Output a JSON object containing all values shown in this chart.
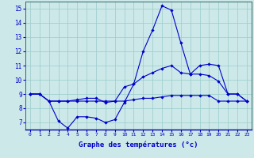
{
  "x_labels": [
    0,
    1,
    2,
    3,
    4,
    5,
    6,
    7,
    8,
    9,
    10,
    11,
    12,
    13,
    14,
    15,
    16,
    17,
    18,
    19,
    20,
    21,
    22,
    23
  ],
  "line1": [
    9.0,
    9.0,
    8.5,
    7.1,
    6.6,
    7.4,
    7.4,
    7.3,
    7.0,
    7.2,
    8.4,
    9.7,
    12.0,
    13.5,
    15.2,
    14.9,
    12.6,
    10.4,
    11.0,
    11.1,
    11.0,
    9.0,
    9.0,
    8.5
  ],
  "line2": [
    9.0,
    9.0,
    8.5,
    8.5,
    8.5,
    8.6,
    8.7,
    8.7,
    8.4,
    8.5,
    9.5,
    9.7,
    10.2,
    10.5,
    10.8,
    11.0,
    10.5,
    10.4,
    10.4,
    10.3,
    9.9,
    9.0,
    9.0,
    8.5
  ],
  "line3": [
    9.0,
    9.0,
    8.5,
    8.5,
    8.5,
    8.5,
    8.5,
    8.5,
    8.5,
    8.5,
    8.5,
    8.6,
    8.7,
    8.7,
    8.8,
    8.9,
    8.9,
    8.9,
    8.9,
    8.9,
    8.5,
    8.5,
    8.5,
    8.5
  ],
  "line_color": "#0000cc",
  "bg_color": "#cce8e8",
  "grid_color": "#99cccc",
  "xlabel": "Graphe des températures (°c)",
  "ylim": [
    6.5,
    15.5
  ],
  "yticks": [
    7,
    8,
    9,
    10,
    11,
    12,
    13,
    14,
    15
  ],
  "xlabel_color": "#0000cc",
  "tick_color": "#0000cc"
}
